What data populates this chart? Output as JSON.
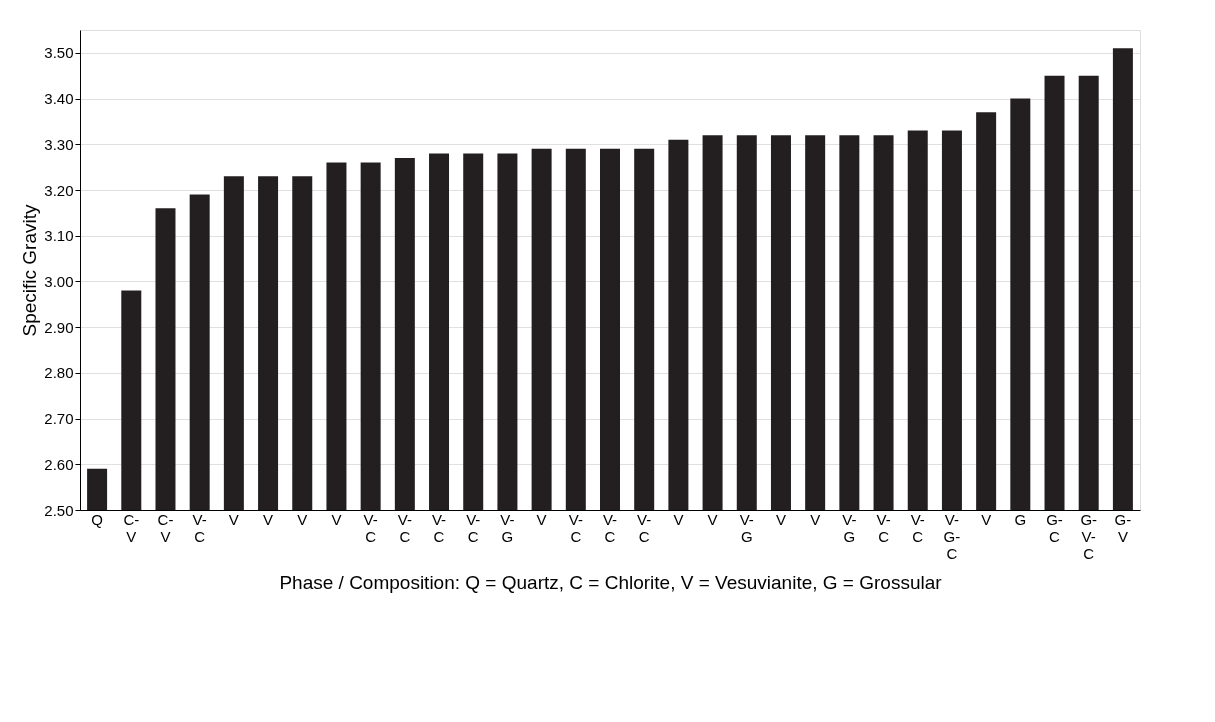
{
  "chart_data": {
    "type": "bar",
    "xlabel": "Phase / Composition:  Q = Quartz, C = Chlorite, V = Vesuvianite, G = Grossular",
    "ylabel": "Specific Gravity",
    "categories": [
      "Q",
      "C-V",
      "C-V",
      "V-C",
      "V",
      "V",
      "V",
      "V",
      "V-C",
      "V-C",
      "V-C",
      "V-C",
      "V-G",
      "V",
      "V-C",
      "V-C",
      "V-C",
      "V",
      "V",
      "V-G",
      "V",
      "V",
      "V-G",
      "V-C",
      "V-C",
      "V-G-C",
      "V",
      "G",
      "G-C",
      "G-V-C",
      "G-V"
    ],
    "values": [
      2.59,
      2.98,
      3.16,
      3.19,
      3.23,
      3.23,
      3.23,
      3.26,
      3.26,
      3.27,
      3.28,
      3.28,
      3.28,
      3.29,
      3.29,
      3.29,
      3.29,
      3.31,
      3.32,
      3.32,
      3.32,
      3.32,
      3.32,
      3.32,
      3.33,
      3.33,
      3.37,
      3.4,
      3.45,
      3.45,
      3.51
    ],
    "color": "#231f20",
    "ylim": [
      2.5,
      3.55
    ],
    "yticks": [
      {
        "value": 2.5,
        "label": "2.50"
      },
      {
        "value": 2.6,
        "label": "2.60"
      },
      {
        "value": 2.7,
        "label": "2.70"
      },
      {
        "value": 2.8,
        "label": "2.80"
      },
      {
        "value": 2.9,
        "label": "2.90"
      },
      {
        "value": 3.0,
        "label": "3.00"
      },
      {
        "value": 3.1,
        "label": "3.10"
      },
      {
        "value": 3.2,
        "label": "3.20"
      },
      {
        "value": 3.3,
        "label": "3.30"
      },
      {
        "value": 3.4,
        "label": "3.40"
      },
      {
        "value": 3.5,
        "label": "3.50"
      }
    ],
    "grid": "y"
  }
}
